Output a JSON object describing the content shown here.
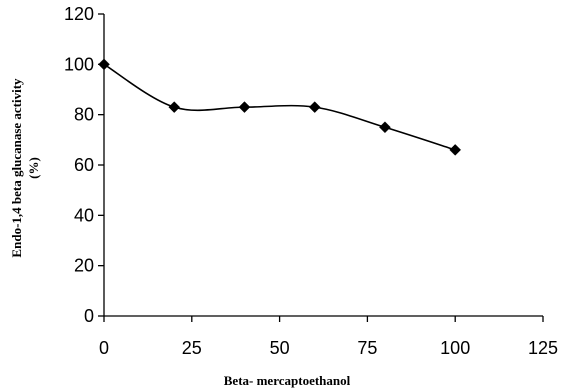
{
  "chart_data": {
    "type": "line",
    "title": "",
    "xlabel": "Beta- mercaptoethanol",
    "ylabel_line1": "Endo-1,4 beta glucanase activity",
    "ylabel_line2": "(%)",
    "xlim": [
      0,
      125
    ],
    "ylim": [
      0,
      120
    ],
    "xticks": [
      0,
      25,
      50,
      75,
      100,
      125
    ],
    "yticks": [
      0,
      20,
      40,
      60,
      80,
      100,
      120
    ],
    "x": [
      0,
      20,
      40,
      60,
      80,
      100
    ],
    "series": [
      {
        "values": [
          100,
          83,
          83,
          83,
          75,
          66
        ],
        "marker": "diamond",
        "smooth": true,
        "color": "#000000"
      }
    ],
    "grid": false,
    "legend": "none"
  }
}
